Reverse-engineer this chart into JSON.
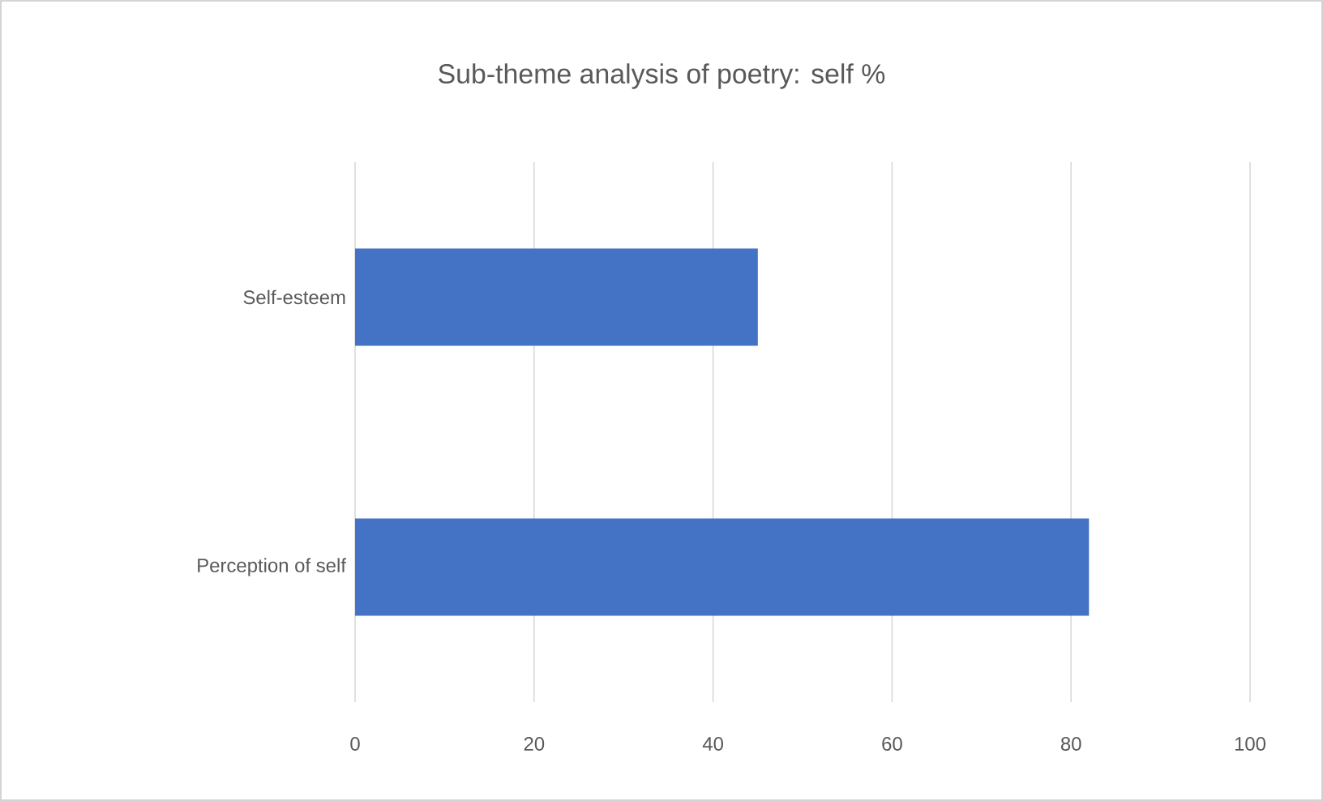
{
  "chart_data": {
    "type": "bar",
    "orientation": "horizontal",
    "title": "Sub-theme analysis of poetry: self %",
    "categories": [
      "Self-esteem",
      "Perception of self"
    ],
    "values": [
      45,
      82
    ],
    "color": "#4472c4",
    "xlim": [
      0,
      100
    ],
    "xticks": [
      0,
      20,
      40,
      60,
      80,
      100
    ],
    "grid": "x"
  }
}
